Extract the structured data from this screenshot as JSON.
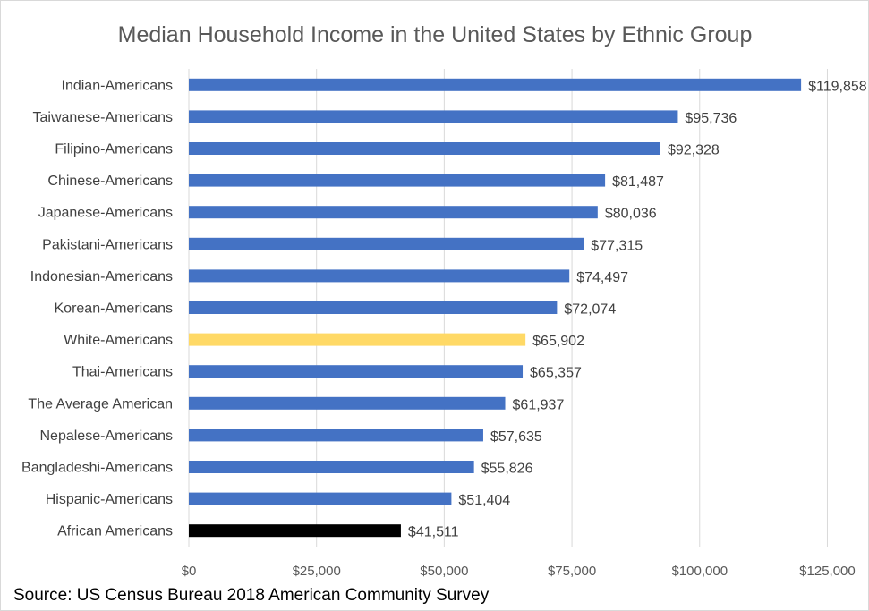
{
  "chart_data": {
    "type": "bar",
    "orientation": "horizontal",
    "title": "Median Household Income in the United States by Ethnic Group",
    "xlabel": "",
    "ylabel": "",
    "xlim": [
      0,
      130000
    ],
    "grid": true,
    "legend": "none",
    "x_ticks": [
      {
        "value": 0,
        "label": "$0"
      },
      {
        "value": 25000,
        "label": "$25,000"
      },
      {
        "value": 50000,
        "label": "$50,000"
      },
      {
        "value": 75000,
        "label": "$75,000"
      },
      {
        "value": 100000,
        "label": "$100,000"
      },
      {
        "value": 125000,
        "label": "$125,000"
      }
    ],
    "categories": [
      "Indian-Americans",
      "Taiwanese-Americans",
      "Filipino-Americans",
      "Chinese-Americans",
      "Japanese-Americans",
      "Pakistani-Americans",
      "Indonesian-Americans",
      "Korean-Americans",
      "White-Americans",
      "Thai-Americans",
      "The Average American",
      "Nepalese-Americans",
      "Bangladeshi-Americans",
      "Hispanic-Americans",
      "African Americans"
    ],
    "values": [
      119858,
      95736,
      92328,
      81487,
      80036,
      77315,
      74497,
      72074,
      65902,
      65357,
      61937,
      57635,
      55826,
      51404,
      41511
    ],
    "value_labels": [
      "$119,858",
      "$95,736",
      "$92,328",
      "$81,487",
      "$80,036",
      "$77,315",
      "$74,497",
      "$72,074",
      "$65,902",
      "$65,357",
      "$61,937",
      "$57,635",
      "$55,826",
      "$51,404",
      "$41,511"
    ],
    "colors": [
      "#4472c4",
      "#4472c4",
      "#4472c4",
      "#4472c4",
      "#4472c4",
      "#4472c4",
      "#4472c4",
      "#4472c4",
      "#ffd966",
      "#4472c4",
      "#4472c4",
      "#4472c4",
      "#4472c4",
      "#4472c4",
      "#000000"
    ]
  },
  "source": "Source: US Census Bureau 2018 American Community Survey"
}
